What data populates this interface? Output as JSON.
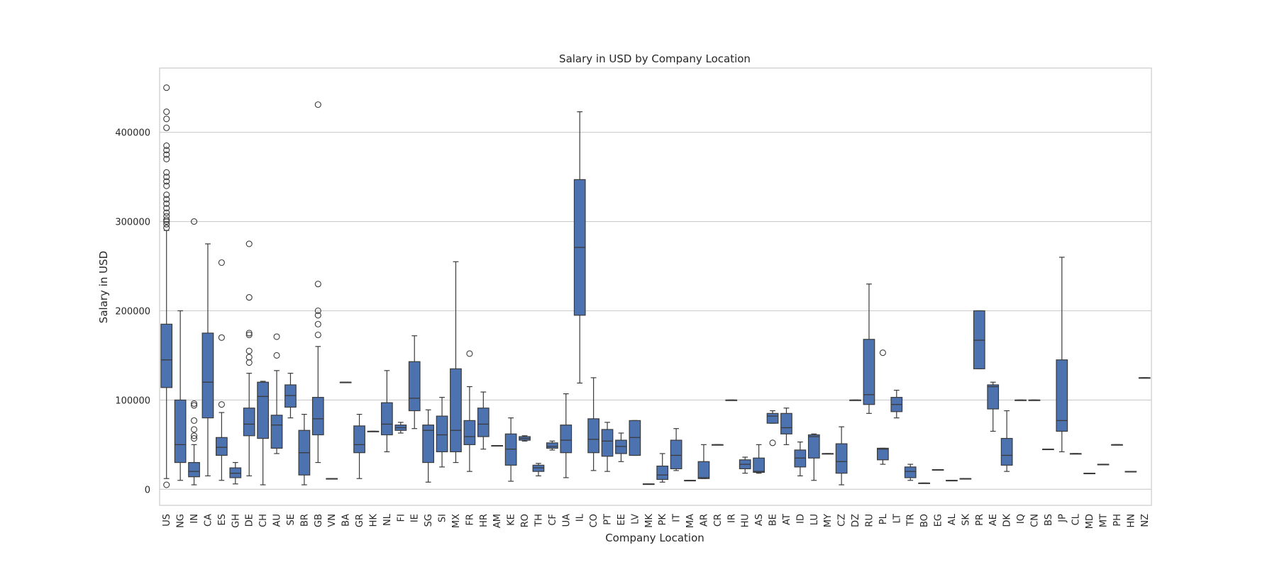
{
  "chart_data": {
    "type": "box",
    "title": "Salary in USD by Company Location",
    "xlabel": "Company Location",
    "ylabel": "Salary in USD",
    "ylim": [
      -18000,
      472000
    ],
    "yticks": [
      0,
      100000,
      200000,
      300000,
      400000
    ],
    "ytick_labels": [
      "0",
      "100000",
      "200000",
      "300000",
      "400000"
    ],
    "grid": "horizontal",
    "box_color": "#4c72b0",
    "categories": [
      "US",
      "NG",
      "IN",
      "CA",
      "ES",
      "GH",
      "DE",
      "CH",
      "AU",
      "SE",
      "BR",
      "GB",
      "VN",
      "BA",
      "GR",
      "HK",
      "NL",
      "FI",
      "IE",
      "SG",
      "SI",
      "MX",
      "FR",
      "HR",
      "AM",
      "KE",
      "RO",
      "TH",
      "CF",
      "UA",
      "IL",
      "CO",
      "PT",
      "EE",
      "LV",
      "MK",
      "PK",
      "IT",
      "MA",
      "AR",
      "CR",
      "IR",
      "HU",
      "AS",
      "BE",
      "AT",
      "ID",
      "LU",
      "MY",
      "CZ",
      "DZ",
      "RU",
      "PL",
      "LT",
      "TR",
      "BO",
      "EG",
      "AL",
      "SK",
      "PR",
      "AE",
      "DK",
      "IQ",
      "CN",
      "BS",
      "JP",
      "CL",
      "MD",
      "MT",
      "PH",
      "HN",
      "NZ"
    ],
    "boxes": [
      {
        "min": 12000,
        "q1": 114000,
        "median": 145000,
        "q3": 185000,
        "max": 290000,
        "outliers": [
          5000,
          293000,
          297000,
          300000,
          302000,
          306000,
          310000,
          315000,
          320000,
          325000,
          330000,
          340000,
          345000,
          350000,
          355000,
          370000,
          375000,
          380000,
          385000,
          405000,
          415000,
          423000,
          450000
        ]
      },
      {
        "min": 10000,
        "q1": 30000,
        "median": 50000,
        "q3": 100000,
        "max": 200000,
        "outliers": []
      },
      {
        "min": 5000,
        "q1": 14000,
        "median": 20000,
        "q3": 30000,
        "max": 50000,
        "outliers": [
          57000,
          60000,
          67000,
          77000,
          94000,
          96000,
          300000
        ]
      },
      {
        "min": 15000,
        "q1": 80000,
        "median": 120000,
        "q3": 175000,
        "max": 275000,
        "outliers": []
      },
      {
        "min": 10000,
        "q1": 38000,
        "median": 47000,
        "q3": 58000,
        "max": 86000,
        "outliers": [
          95000,
          170000,
          254000
        ]
      },
      {
        "min": 6000,
        "q1": 13000,
        "median": 18000,
        "q3": 24000,
        "max": 30000,
        "outliers": []
      },
      {
        "min": 15000,
        "q1": 60000,
        "median": 73000,
        "q3": 91000,
        "max": 130000,
        "outliers": [
          142000,
          148000,
          155000,
          173000,
          175000,
          215000,
          275000
        ]
      },
      {
        "min": 5000,
        "q1": 57000,
        "median": 104000,
        "q3": 120000,
        "max": 121000,
        "outliers": []
      },
      {
        "min": 40000,
        "q1": 46000,
        "median": 72000,
        "q3": 83000,
        "max": 133000,
        "outliers": [
          150000,
          171000
        ]
      },
      {
        "min": 80000,
        "q1": 92000,
        "median": 105000,
        "q3": 117000,
        "max": 130000,
        "outliers": []
      },
      {
        "min": 5000,
        "q1": 16000,
        "median": 41000,
        "q3": 66000,
        "max": 84000,
        "outliers": []
      },
      {
        "min": 30000,
        "q1": 61000,
        "median": 79000,
        "q3": 103000,
        "max": 160000,
        "outliers": [
          173000,
          185000,
          195000,
          200000,
          230000,
          431000
        ]
      },
      {
        "min": 12000,
        "q1": 12000,
        "median": 12000,
        "q3": 12000,
        "max": 12000,
        "outliers": []
      },
      {
        "min": 120000,
        "q1": 120000,
        "median": 120000,
        "q3": 120000,
        "max": 120000,
        "outliers": []
      },
      {
        "min": 12000,
        "q1": 41000,
        "median": 50000,
        "q3": 71000,
        "max": 84000,
        "outliers": []
      },
      {
        "min": 65000,
        "q1": 65000,
        "median": 65000,
        "q3": 65000,
        "max": 65000,
        "outliers": []
      },
      {
        "min": 42000,
        "q1": 61000,
        "median": 73000,
        "q3": 97000,
        "max": 133000,
        "outliers": []
      },
      {
        "min": 63000,
        "q1": 66000,
        "median": 69000,
        "q3": 72000,
        "max": 75000,
        "outliers": []
      },
      {
        "min": 68000,
        "q1": 88000,
        "median": 102000,
        "q3": 143000,
        "max": 172000,
        "outliers": []
      },
      {
        "min": 8000,
        "q1": 30000,
        "median": 66000,
        "q3": 72000,
        "max": 89000,
        "outliers": []
      },
      {
        "min": 25000,
        "q1": 42000,
        "median": 61000,
        "q3": 82000,
        "max": 103000,
        "outliers": []
      },
      {
        "min": 30000,
        "q1": 42000,
        "median": 66000,
        "q3": 135000,
        "max": 255000,
        "outliers": []
      },
      {
        "min": 20000,
        "q1": 50000,
        "median": 59000,
        "q3": 77000,
        "max": 115000,
        "outliers": [
          152000
        ]
      },
      {
        "min": 45000,
        "q1": 59000,
        "median": 73000,
        "q3": 91000,
        "max": 109000,
        "outliers": []
      },
      {
        "min": 49000,
        "q1": 49000,
        "median": 49000,
        "q3": 49000,
        "max": 49000,
        "outliers": []
      },
      {
        "min": 9000,
        "q1": 27000,
        "median": 45000,
        "q3": 62000,
        "max": 80000,
        "outliers": []
      },
      {
        "min": 54000,
        "q1": 55000,
        "median": 57000,
        "q3": 59000,
        "max": 60000,
        "outliers": []
      },
      {
        "min": 15000,
        "q1": 20000,
        "median": 24000,
        "q3": 27000,
        "max": 29000,
        "outliers": []
      },
      {
        "min": 44000,
        "q1": 46000,
        "median": 48000,
        "q3": 52000,
        "max": 54000,
        "outliers": []
      },
      {
        "min": 13000,
        "q1": 41000,
        "median": 55000,
        "q3": 72000,
        "max": 107000,
        "outliers": []
      },
      {
        "min": 119000,
        "q1": 195000,
        "median": 271000,
        "q3": 347000,
        "max": 423000,
        "outliers": []
      },
      {
        "min": 21000,
        "q1": 41000,
        "median": 56000,
        "q3": 79000,
        "max": 125000,
        "outliers": []
      },
      {
        "min": 20000,
        "q1": 37000,
        "median": 54000,
        "q3": 67000,
        "max": 75000,
        "outliers": []
      },
      {
        "min": 31000,
        "q1": 40000,
        "median": 48000,
        "q3": 55000,
        "max": 63000,
        "outliers": []
      },
      {
        "min": 38000,
        "q1": 38000,
        "median": 58000,
        "q3": 77000,
        "max": 77000,
        "outliers": []
      },
      {
        "min": 6000,
        "q1": 6000,
        "median": 6000,
        "q3": 6000,
        "max": 6000,
        "outliers": []
      },
      {
        "min": 8000,
        "q1": 11000,
        "median": 16000,
        "q3": 26000,
        "max": 40000,
        "outliers": []
      },
      {
        "min": 21000,
        "q1": 23000,
        "median": 38000,
        "q3": 55000,
        "max": 68000,
        "outliers": []
      },
      {
        "min": 10000,
        "q1": 10000,
        "median": 10000,
        "q3": 10000,
        "max": 10000,
        "outliers": []
      },
      {
        "min": 12000,
        "q1": 12000,
        "median": 13000,
        "q3": 31000,
        "max": 50000,
        "outliers": []
      },
      {
        "min": 50000,
        "q1": 50000,
        "median": 50000,
        "q3": 50000,
        "max": 50000,
        "outliers": []
      },
      {
        "min": 100000,
        "q1": 100000,
        "median": 100000,
        "q3": 100000,
        "max": 100000,
        "outliers": []
      },
      {
        "min": 18000,
        "q1": 23000,
        "median": 28000,
        "q3": 33000,
        "max": 36000,
        "outliers": []
      },
      {
        "min": 18000,
        "q1": 19000,
        "median": 20000,
        "q3": 35000,
        "max": 50000,
        "outliers": []
      },
      {
        "min": 74000,
        "q1": 74000,
        "median": 82000,
        "q3": 85000,
        "max": 88000,
        "outliers": [
          52000
        ]
      },
      {
        "min": 50000,
        "q1": 62000,
        "median": 69000,
        "q3": 85000,
        "max": 91000,
        "outliers": []
      },
      {
        "min": 15000,
        "q1": 25000,
        "median": 35000,
        "q3": 44000,
        "max": 53000,
        "outliers": []
      },
      {
        "min": 10000,
        "q1": 35000,
        "median": 59000,
        "q3": 61000,
        "max": 62000,
        "outliers": []
      },
      {
        "min": 40000,
        "q1": 40000,
        "median": 40000,
        "q3": 40000,
        "max": 40000,
        "outliers": []
      },
      {
        "min": 5000,
        "q1": 18000,
        "median": 31000,
        "q3": 51000,
        "max": 70000,
        "outliers": []
      },
      {
        "min": 100000,
        "q1": 100000,
        "median": 100000,
        "q3": 100000,
        "max": 100000,
        "outliers": []
      },
      {
        "min": 85000,
        "q1": 95000,
        "median": 106000,
        "q3": 168000,
        "max": 230000,
        "outliers": []
      },
      {
        "min": 28000,
        "q1": 33000,
        "median": 45000,
        "q3": 46000,
        "max": 46000,
        "outliers": [
          153000
        ]
      },
      {
        "min": 80000,
        "q1": 87000,
        "median": 95000,
        "q3": 103000,
        "max": 111000,
        "outliers": []
      },
      {
        "min": 10000,
        "q1": 13000,
        "median": 20000,
        "q3": 25000,
        "max": 28000,
        "outliers": []
      },
      {
        "min": 7000,
        "q1": 7000,
        "median": 7000,
        "q3": 7000,
        "max": 7000,
        "outliers": []
      },
      {
        "min": 22000,
        "q1": 22000,
        "median": 22000,
        "q3": 22000,
        "max": 22000,
        "outliers": []
      },
      {
        "min": 10000,
        "q1": 10000,
        "median": 10000,
        "q3": 10000,
        "max": 10000,
        "outliers": []
      },
      {
        "min": 12000,
        "q1": 12000,
        "median": 12000,
        "q3": 12000,
        "max": 12000,
        "outliers": []
      },
      {
        "min": 135000,
        "q1": 135000,
        "median": 167000,
        "q3": 200000,
        "max": 200000,
        "outliers": []
      },
      {
        "min": 65000,
        "q1": 90000,
        "median": 115000,
        "q3": 117000,
        "max": 120000,
        "outliers": []
      },
      {
        "min": 20000,
        "q1": 27000,
        "median": 38000,
        "q3": 57000,
        "max": 88000,
        "outliers": []
      },
      {
        "min": 100000,
        "q1": 100000,
        "median": 100000,
        "q3": 100000,
        "max": 100000,
        "outliers": []
      },
      {
        "min": 100000,
        "q1": 100000,
        "median": 100000,
        "q3": 100000,
        "max": 100000,
        "outliers": []
      },
      {
        "min": 45000,
        "q1": 45000,
        "median": 45000,
        "q3": 45000,
        "max": 45000,
        "outliers": []
      },
      {
        "min": 42000,
        "q1": 65000,
        "median": 77000,
        "q3": 145000,
        "max": 260000,
        "outliers": []
      },
      {
        "min": 40000,
        "q1": 40000,
        "median": 40000,
        "q3": 40000,
        "max": 40000,
        "outliers": []
      },
      {
        "min": 18000,
        "q1": 18000,
        "median": 18000,
        "q3": 18000,
        "max": 18000,
        "outliers": []
      },
      {
        "min": 28000,
        "q1": 28000,
        "median": 28000,
        "q3": 28000,
        "max": 28000,
        "outliers": []
      },
      {
        "min": 50000,
        "q1": 50000,
        "median": 50000,
        "q3": 50000,
        "max": 50000,
        "outliers": []
      },
      {
        "min": 20000,
        "q1": 20000,
        "median": 20000,
        "q3": 20000,
        "max": 20000,
        "outliers": []
      },
      {
        "min": 125000,
        "q1": 125000,
        "median": 125000,
        "q3": 125000,
        "max": 125000,
        "outliers": []
      }
    ]
  }
}
